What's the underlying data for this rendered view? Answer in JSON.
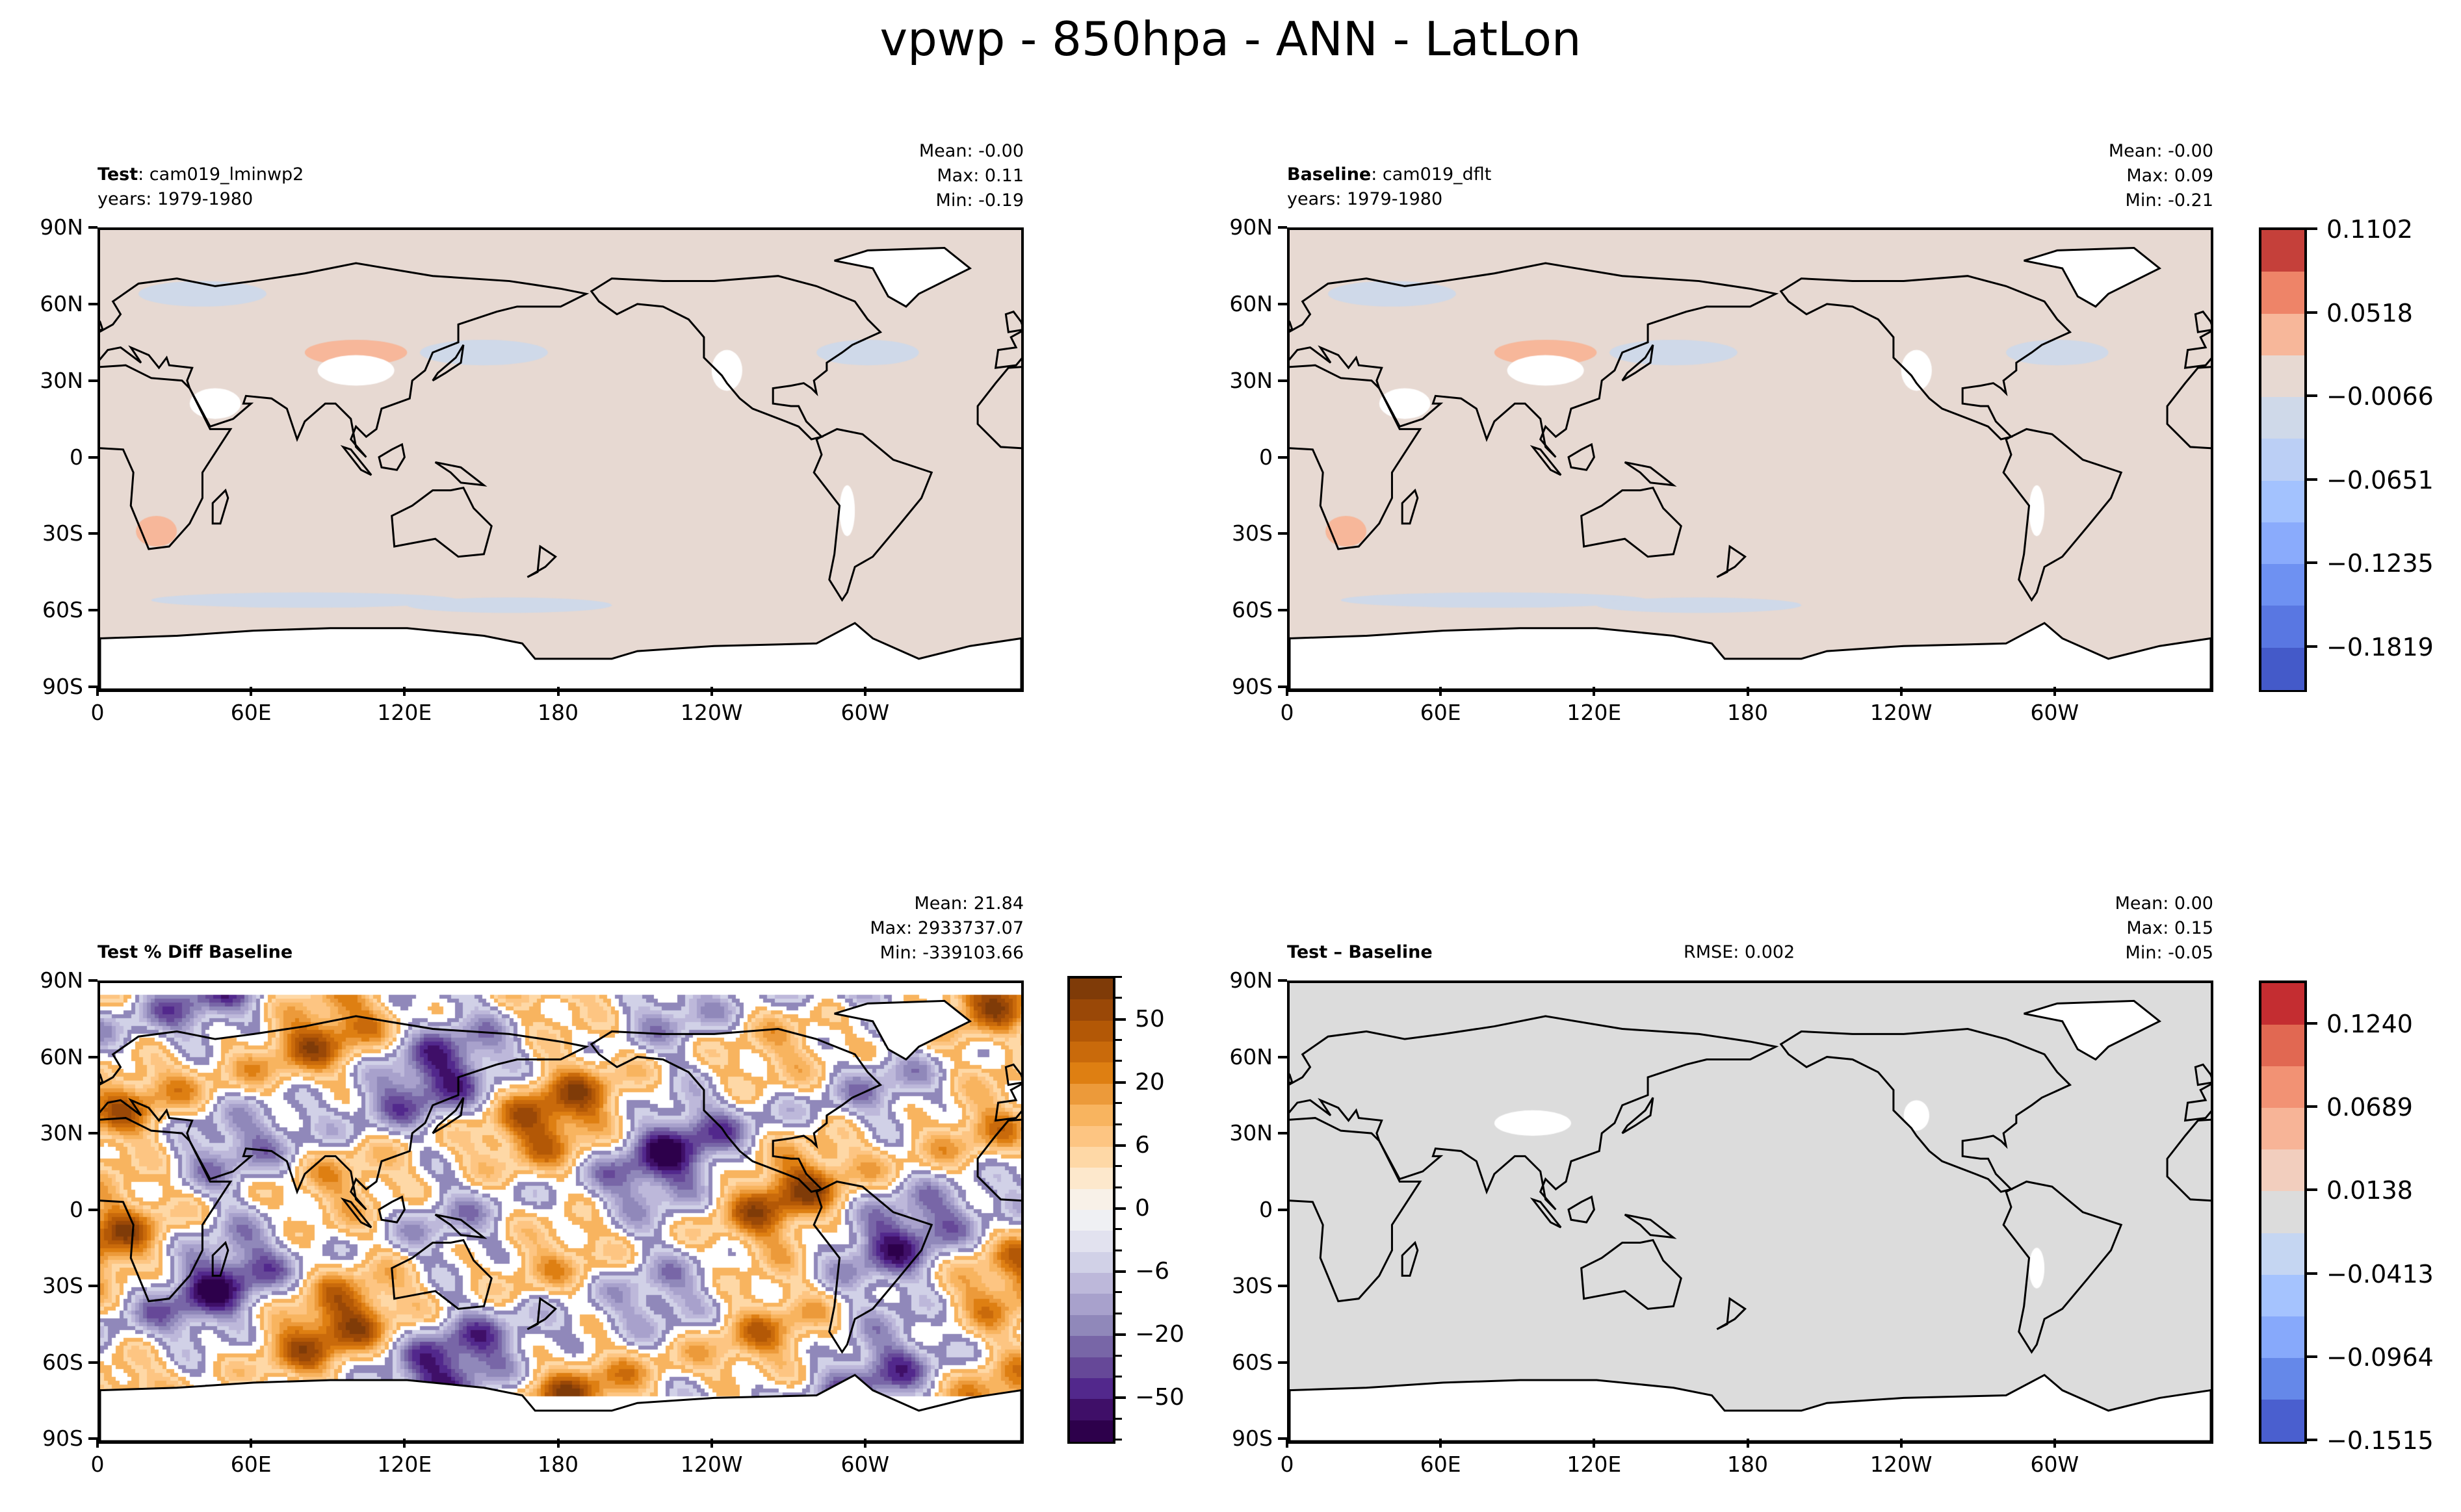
{
  "chart_data": [
    {
      "type": "heatmap",
      "figure_title": "vpwp - 850hpa - ANN - LatLon",
      "panel": "test",
      "label_bold": "Test",
      "label_rest": ": cam019_lminwp2",
      "years": "years: 1979-1980",
      "stats": [
        "Mean: -0.00",
        "Max:  0.11",
        "Min: -0.19"
      ],
      "field_color": "#e7d9d2",
      "ylim": [
        -90,
        90
      ],
      "xlim": [
        0,
        360
      ]
    },
    {
      "type": "heatmap",
      "panel": "baseline",
      "label_bold": "Baseline",
      "label_rest": ": cam019_dflt",
      "years": "years: 1979-1980",
      "stats": [
        "Mean: -0.00",
        "Max:  0.09",
        "Min: -0.21"
      ],
      "field_color": "#e7d9d2",
      "ylim": [
        -90,
        90
      ],
      "xlim": [
        0,
        360
      ],
      "colorbar": {
        "tick_labels": [
          "0.1102",
          "0.0518",
          "−0.0066",
          "−0.0651",
          "−0.1235",
          "−0.1819"
        ],
        "tick_values": [
          0.1102,
          0.0518,
          -0.0066,
          -0.0651,
          -0.1235,
          -0.1819
        ],
        "range": [
          -0.2111,
          0.1102
        ],
        "colors": [
          "#c5403a",
          "#ee8468",
          "#f7b79a",
          "#e7d9d2",
          "#cfd9e9",
          "#bbcff5",
          "#a3c2fe",
          "#8aabfc",
          "#6e91f2",
          "#5977e2",
          "#445ac9"
        ]
      }
    },
    {
      "type": "heatmap",
      "panel": "percent_diff",
      "label_bold": "Test % Diff Baseline",
      "stats": [
        "Mean: 21.84",
        "Max: 2933737.07",
        "Min: -339103.66"
      ],
      "ylim": [
        -90,
        90
      ],
      "xlim": [
        0,
        360
      ],
      "colorbar": {
        "tick_labels": [
          "50",
          "20",
          "6",
          "0",
          "−6",
          "−20",
          "−50"
        ],
        "colors": [
          "#7f3b08",
          "#9a4807",
          "#b35806",
          "#c96a0b",
          "#de7f12",
          "#ec9a3a",
          "#f8b45f",
          "#fdc582",
          "#fed8a6",
          "#fde8cc",
          "#f8f1e8",
          "#eff0f3",
          "#e2e2ef",
          "#d1d1e7",
          "#bdb8da",
          "#a8a1cc",
          "#9088ba",
          "#7866a7",
          "#664898",
          "#52288c",
          "#3f0f68",
          "#2d004b"
        ]
      }
    },
    {
      "type": "heatmap",
      "panel": "difference",
      "label_bold": "Test – Baseline",
      "rmse": "RMSE: 0.002",
      "stats": [
        "Mean:  0.00",
        "Max:  0.15",
        "Min: -0.05"
      ],
      "field_color": "#dcdcdc",
      "ylim": [
        -90,
        90
      ],
      "xlim": [
        0,
        360
      ],
      "colorbar": {
        "tick_labels": [
          "0.1240",
          "0.0689",
          "0.0138",
          "−0.0413",
          "−0.0964",
          "−0.1515"
        ],
        "tick_values": [
          0.124,
          0.0689,
          0.0138,
          -0.0413,
          -0.0964,
          -0.1515
        ],
        "range": [
          -0.1515,
          0.1515
        ],
        "colors": [
          "#c42d31",
          "#e16852",
          "#f29274",
          "#f7b497",
          "#f2cebe",
          "#dcdcdc",
          "#c5d6f2",
          "#a5c3fe",
          "#87a9fb",
          "#6588e9",
          "#4a5fcf"
        ]
      }
    }
  ],
  "axes": {
    "lat_ticks": [
      90,
      60,
      30,
      0,
      -30,
      -60,
      -90
    ],
    "lat_labels": [
      "90N",
      "60N",
      "30N",
      "0",
      "30S",
      "60S",
      "90S"
    ],
    "lon_ticks": [
      0,
      60,
      120,
      180,
      240,
      300
    ],
    "lon_labels": [
      "0",
      "60E",
      "120E",
      "180",
      "120W",
      "60W"
    ]
  }
}
